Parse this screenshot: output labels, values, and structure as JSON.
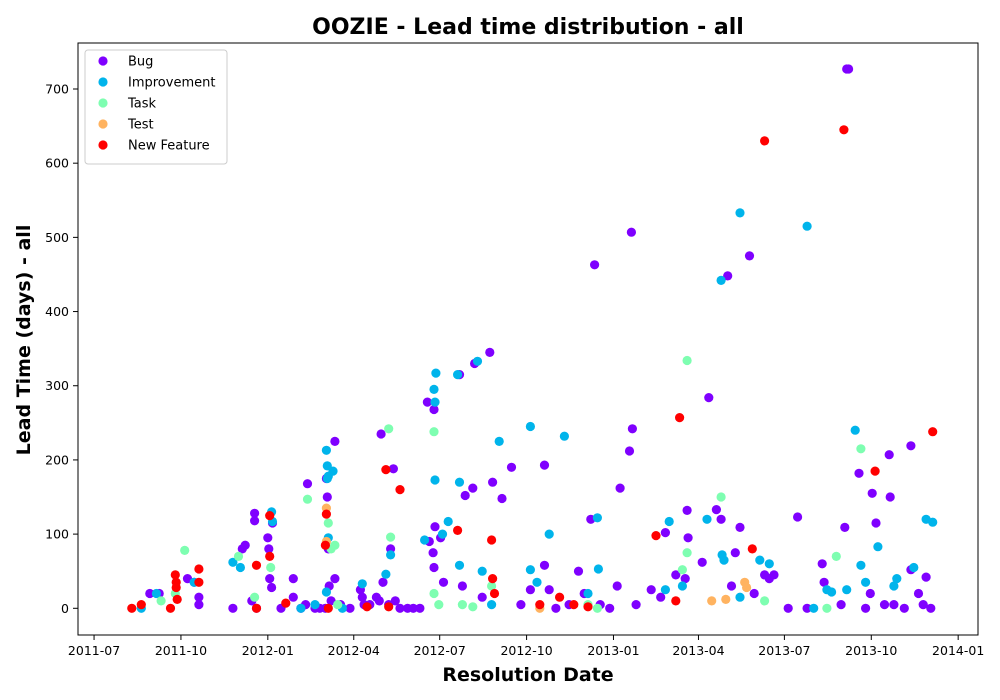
{
  "chart_data": {
    "type": "scatter",
    "title": "OOZIE - Lead time distribution - all",
    "xlabel": "Resolution Date",
    "ylabel": "Lead Time (days) - all",
    "x_range": [
      "2011-06-14",
      "2014-01-22"
    ],
    "y_range": [
      -36,
      762
    ],
    "x_ticks": [
      "2011-07-01",
      "2011-10-01",
      "2012-01-01",
      "2012-04-01",
      "2012-07-01",
      "2012-10-01",
      "2013-01-01",
      "2013-04-01",
      "2013-07-01",
      "2013-10-01",
      "2014-01-01"
    ],
    "x_tick_labels": [
      "2011-07",
      "2011-10",
      "2012-01",
      "2012-04",
      "2012-07",
      "2012-10",
      "2013-01",
      "2013-04",
      "2013-07",
      "2013-10",
      "2014-01"
    ],
    "y_ticks": [
      0,
      100,
      200,
      300,
      400,
      500,
      600,
      700
    ],
    "grid": false,
    "legend_position": "top-left",
    "series": [
      {
        "name": "Bug",
        "color": "#7f00ff",
        "points": [
          [
            "2011-08-29",
            20
          ],
          [
            "2011-09-08",
            20
          ],
          [
            "2011-10-08",
            40
          ],
          [
            "2011-10-15",
            35
          ],
          [
            "2011-10-20",
            15
          ],
          [
            "2011-10-20",
            5
          ],
          [
            "2011-11-25",
            0
          ],
          [
            "2011-12-05",
            80
          ],
          [
            "2011-12-08",
            85
          ],
          [
            "2011-12-15",
            10
          ],
          [
            "2011-12-18",
            128
          ],
          [
            "2011-12-18",
            118
          ],
          [
            "2011-12-20",
            0
          ],
          [
            "2012-01-01",
            95
          ],
          [
            "2012-01-02",
            80
          ],
          [
            "2012-01-03",
            40
          ],
          [
            "2012-01-05",
            28
          ],
          [
            "2012-01-06",
            115
          ],
          [
            "2012-01-15",
            0
          ],
          [
            "2012-01-28",
            40
          ],
          [
            "2012-01-28",
            15
          ],
          [
            "2012-02-05",
            0
          ],
          [
            "2012-02-10",
            5
          ],
          [
            "2012-02-12",
            168
          ],
          [
            "2012-02-20",
            0
          ],
          [
            "2012-02-25",
            0
          ],
          [
            "2012-03-02",
            0
          ],
          [
            "2012-03-03",
            175
          ],
          [
            "2012-03-04",
            150
          ],
          [
            "2012-03-05",
            80
          ],
          [
            "2012-03-06",
            30
          ],
          [
            "2012-03-08",
            10
          ],
          [
            "2012-03-12",
            225
          ],
          [
            "2012-03-12",
            40
          ],
          [
            "2012-03-18",
            5
          ],
          [
            "2012-03-28",
            0
          ],
          [
            "2012-04-08",
            25
          ],
          [
            "2012-04-10",
            15
          ],
          [
            "2012-04-12",
            5
          ],
          [
            "2012-04-18",
            5
          ],
          [
            "2012-04-25",
            15
          ],
          [
            "2012-04-28",
            10
          ],
          [
            "2012-04-30",
            235
          ],
          [
            "2012-05-02",
            35
          ],
          [
            "2012-05-08",
            5
          ],
          [
            "2012-05-10",
            80
          ],
          [
            "2012-05-13",
            188
          ],
          [
            "2012-05-15",
            10
          ],
          [
            "2012-05-20",
            0
          ],
          [
            "2012-05-28",
            0
          ],
          [
            "2012-06-03",
            0
          ],
          [
            "2012-06-10",
            0
          ],
          [
            "2012-06-18",
            278
          ],
          [
            "2012-06-20",
            90
          ],
          [
            "2012-06-24",
            75
          ],
          [
            "2012-06-25",
            55
          ],
          [
            "2012-06-25",
            268
          ],
          [
            "2012-06-26",
            110
          ],
          [
            "2012-07-02",
            95
          ],
          [
            "2012-07-05",
            35
          ],
          [
            "2012-07-22",
            315
          ],
          [
            "2012-07-25",
            30
          ],
          [
            "2012-07-28",
            152
          ],
          [
            "2012-08-05",
            162
          ],
          [
            "2012-08-07",
            330
          ],
          [
            "2012-08-15",
            15
          ],
          [
            "2012-08-23",
            345
          ],
          [
            "2012-08-26",
            170
          ],
          [
            "2012-09-05",
            148
          ],
          [
            "2012-09-15",
            190
          ],
          [
            "2012-09-25",
            5
          ],
          [
            "2012-10-05",
            25
          ],
          [
            "2012-10-20",
            193
          ],
          [
            "2012-10-20",
            58
          ],
          [
            "2012-10-25",
            25
          ],
          [
            "2012-11-01",
            0
          ],
          [
            "2012-11-15",
            5
          ],
          [
            "2012-11-25",
            50
          ],
          [
            "2012-12-01",
            20
          ],
          [
            "2012-12-08",
            120
          ],
          [
            "2012-12-12",
            463
          ],
          [
            "2012-12-18",
            5
          ],
          [
            "2012-12-28",
            0
          ],
          [
            "2013-01-05",
            30
          ],
          [
            "2013-01-08",
            162
          ],
          [
            "2013-01-18",
            212
          ],
          [
            "2013-01-20",
            507
          ],
          [
            "2013-01-21",
            242
          ],
          [
            "2013-01-25",
            5
          ],
          [
            "2013-02-10",
            25
          ],
          [
            "2013-02-20",
            15
          ],
          [
            "2013-02-25",
            102
          ],
          [
            "2013-03-08",
            45
          ],
          [
            "2013-03-18",
            40
          ],
          [
            "2013-03-20",
            132
          ],
          [
            "2013-03-21",
            95
          ],
          [
            "2013-04-05",
            62
          ],
          [
            "2013-04-12",
            284
          ],
          [
            "2013-04-20",
            133
          ],
          [
            "2013-04-25",
            120
          ],
          [
            "2013-05-02",
            448
          ],
          [
            "2013-05-06",
            30
          ],
          [
            "2013-05-10",
            75
          ],
          [
            "2013-05-15",
            109
          ],
          [
            "2013-05-25",
            475
          ],
          [
            "2013-05-30",
            20
          ],
          [
            "2013-06-10",
            45
          ],
          [
            "2013-06-15",
            40
          ],
          [
            "2013-06-20",
            45
          ],
          [
            "2013-07-05",
            0
          ],
          [
            "2013-07-15",
            123
          ],
          [
            "2013-07-25",
            0
          ],
          [
            "2013-08-10",
            60
          ],
          [
            "2013-08-12",
            35
          ],
          [
            "2013-08-30",
            5
          ],
          [
            "2013-09-03",
            109
          ],
          [
            "2013-09-05",
            727
          ],
          [
            "2013-09-07",
            727
          ],
          [
            "2013-09-18",
            182
          ],
          [
            "2013-09-25",
            0
          ],
          [
            "2013-09-30",
            20
          ],
          [
            "2013-10-02",
            155
          ],
          [
            "2013-10-06",
            115
          ],
          [
            "2013-10-15",
            5
          ],
          [
            "2013-10-20",
            207
          ],
          [
            "2013-10-21",
            150
          ],
          [
            "2013-10-25",
            5
          ],
          [
            "2013-11-05",
            0
          ],
          [
            "2013-11-12",
            52
          ],
          [
            "2013-11-12",
            219
          ],
          [
            "2013-11-20",
            20
          ],
          [
            "2013-11-25",
            5
          ],
          [
            "2013-11-28",
            42
          ],
          [
            "2013-12-03",
            0
          ]
        ]
      },
      {
        "name": "Improvement",
        "color": "#00b4eb",
        "points": [
          [
            "2011-08-20",
            0
          ],
          [
            "2011-09-05",
            20
          ],
          [
            "2011-10-15",
            35
          ],
          [
            "2011-11-25",
            62
          ],
          [
            "2011-12-03",
            55
          ],
          [
            "2012-01-05",
            130
          ],
          [
            "2012-01-06",
            117
          ],
          [
            "2012-02-05",
            0
          ],
          [
            "2012-02-20",
            5
          ],
          [
            "2012-03-03",
            213
          ],
          [
            "2012-03-04",
            192
          ],
          [
            "2012-03-04",
            175
          ],
          [
            "2012-03-05",
            178
          ],
          [
            "2012-03-10",
            185
          ],
          [
            "2012-03-05",
            95
          ],
          [
            "2012-03-03",
            22
          ],
          [
            "2012-03-20",
            0
          ],
          [
            "2012-04-10",
            33
          ],
          [
            "2012-05-05",
            46
          ],
          [
            "2012-05-10",
            72
          ],
          [
            "2012-06-15",
            92
          ],
          [
            "2012-06-25",
            295
          ],
          [
            "2012-06-27",
            317
          ],
          [
            "2012-06-26",
            278
          ],
          [
            "2012-06-26",
            173
          ],
          [
            "2012-07-04",
            100
          ],
          [
            "2012-07-10",
            117
          ],
          [
            "2012-07-20",
            315
          ],
          [
            "2012-07-22",
            170
          ],
          [
            "2012-07-22",
            58
          ],
          [
            "2012-08-10",
            333
          ],
          [
            "2012-08-15",
            50
          ],
          [
            "2012-08-25",
            5
          ],
          [
            "2012-09-02",
            225
          ],
          [
            "2012-10-05",
            245
          ],
          [
            "2012-10-05",
            52
          ],
          [
            "2012-10-12",
            35
          ],
          [
            "2012-10-25",
            100
          ],
          [
            "2012-11-10",
            232
          ],
          [
            "2012-12-05",
            20
          ],
          [
            "2012-12-15",
            122
          ],
          [
            "2012-12-16",
            53
          ],
          [
            "2013-02-25",
            25
          ],
          [
            "2013-03-01",
            117
          ],
          [
            "2013-03-15",
            30
          ],
          [
            "2013-04-10",
            120
          ],
          [
            "2013-04-25",
            442
          ],
          [
            "2013-04-26",
            72
          ],
          [
            "2013-04-28",
            65
          ],
          [
            "2013-05-15",
            533
          ],
          [
            "2013-05-15",
            15
          ],
          [
            "2013-06-05",
            65
          ],
          [
            "2013-06-15",
            60
          ],
          [
            "2013-07-25",
            515
          ],
          [
            "2013-08-01",
            0
          ],
          [
            "2013-08-15",
            25
          ],
          [
            "2013-08-20",
            22
          ],
          [
            "2013-09-05",
            25
          ],
          [
            "2013-09-14",
            240
          ],
          [
            "2013-09-20",
            58
          ],
          [
            "2013-09-25",
            35
          ],
          [
            "2013-10-08",
            83
          ],
          [
            "2013-10-25",
            30
          ],
          [
            "2013-10-28",
            40
          ],
          [
            "2013-11-15",
            55
          ],
          [
            "2013-11-28",
            120
          ],
          [
            "2013-12-05",
            116
          ]
        ]
      },
      {
        "name": "Task",
        "color": "#7efeb1",
        "points": [
          [
            "2011-09-10",
            10
          ],
          [
            "2011-09-25",
            20
          ],
          [
            "2011-10-05",
            78
          ],
          [
            "2011-12-01",
            70
          ],
          [
            "2011-12-18",
            15
          ],
          [
            "2012-01-04",
            55
          ],
          [
            "2012-02-12",
            147
          ],
          [
            "2012-03-05",
            115
          ],
          [
            "2012-03-08",
            80
          ],
          [
            "2012-03-12",
            85
          ],
          [
            "2012-03-15",
            5
          ],
          [
            "2012-05-08",
            242
          ],
          [
            "2012-05-10",
            96
          ],
          [
            "2012-06-25",
            238
          ],
          [
            "2012-06-25",
            20
          ],
          [
            "2012-06-30",
            5
          ],
          [
            "2012-07-25",
            5
          ],
          [
            "2012-08-05",
            2
          ],
          [
            "2012-08-25",
            30
          ],
          [
            "2012-12-05",
            5
          ],
          [
            "2012-12-15",
            0
          ],
          [
            "2013-03-15",
            52
          ],
          [
            "2013-03-20",
            334
          ],
          [
            "2013-03-20",
            75
          ],
          [
            "2013-04-25",
            150
          ],
          [
            "2013-06-10",
            10
          ],
          [
            "2013-08-25",
            70
          ],
          [
            "2013-09-20",
            215
          ],
          [
            "2013-08-15",
            0
          ]
        ]
      },
      {
        "name": "Test",
        "color": "#ffb360",
        "points": [
          [
            "2012-03-03",
            135
          ],
          [
            "2012-03-03",
            90
          ],
          [
            "2013-04-15",
            10
          ],
          [
            "2013-04-30",
            12
          ],
          [
            "2013-05-20",
            35
          ],
          [
            "2013-05-22",
            28
          ],
          [
            "2012-10-15",
            0
          ]
        ]
      },
      {
        "name": "New Feature",
        "color": "#ff0000",
        "points": [
          [
            "2011-08-10",
            0
          ],
          [
            "2011-08-20",
            5
          ],
          [
            "2011-09-20",
            0
          ],
          [
            "2011-09-25",
            45
          ],
          [
            "2011-09-26",
            35
          ],
          [
            "2011-09-26",
            28
          ],
          [
            "2011-09-27",
            12
          ],
          [
            "2011-10-20",
            53
          ],
          [
            "2011-10-20",
            35
          ],
          [
            "2011-12-20",
            58
          ],
          [
            "2011-12-20",
            0
          ],
          [
            "2012-01-03",
            125
          ],
          [
            "2012-01-03",
            70
          ],
          [
            "2012-01-20",
            7
          ],
          [
            "2012-03-02",
            85
          ],
          [
            "2012-03-03",
            127
          ],
          [
            "2012-03-05",
            0
          ],
          [
            "2012-04-15",
            2
          ],
          [
            "2012-05-05",
            187
          ],
          [
            "2012-05-08",
            2
          ],
          [
            "2012-05-20",
            160
          ],
          [
            "2012-07-20",
            105
          ],
          [
            "2012-08-25",
            92
          ],
          [
            "2012-08-26",
            40
          ],
          [
            "2012-08-28",
            20
          ],
          [
            "2012-10-15",
            5
          ],
          [
            "2012-11-05",
            15
          ],
          [
            "2012-11-20",
            5
          ],
          [
            "2012-12-05",
            2
          ],
          [
            "2013-02-15",
            98
          ],
          [
            "2013-03-12",
            257
          ],
          [
            "2013-03-08",
            10
          ],
          [
            "2013-05-28",
            80
          ],
          [
            "2013-06-10",
            630
          ],
          [
            "2013-09-02",
            645
          ],
          [
            "2013-10-05",
            185
          ],
          [
            "2013-12-05",
            238
          ]
        ]
      }
    ]
  }
}
